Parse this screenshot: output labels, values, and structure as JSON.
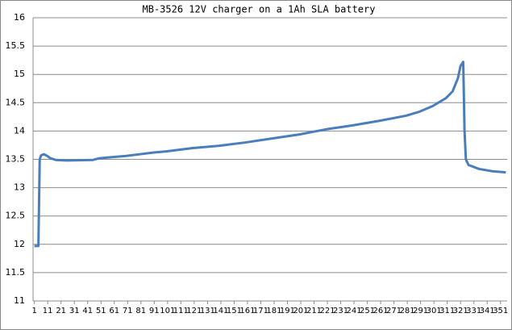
{
  "chart_data": {
    "type": "line",
    "title": "MB-3526 12V charger on a 1Ah SLA battery",
    "x": [
      1,
      4,
      5,
      6,
      8,
      10,
      13,
      17,
      25,
      45,
      50,
      70,
      80,
      90,
      100,
      120,
      140,
      160,
      180,
      200,
      220,
      240,
      260,
      280,
      290,
      300,
      310,
      315,
      319,
      321,
      323,
      324,
      325,
      327,
      335,
      345,
      355
    ],
    "values": [
      11.97,
      11.97,
      13.5,
      13.57,
      13.59,
      13.57,
      13.52,
      13.49,
      13.48,
      13.49,
      13.52,
      13.56,
      13.59,
      13.62,
      13.64,
      13.7,
      13.74,
      13.8,
      13.87,
      13.94,
      14.03,
      14.1,
      14.18,
      14.27,
      14.34,
      14.44,
      14.58,
      14.7,
      14.93,
      15.15,
      15.22,
      14.0,
      13.5,
      13.4,
      13.33,
      13.29,
      13.27
    ],
    "color": "#4a7ebb",
    "xlim": [
      0,
      356
    ],
    "xticks": [
      1,
      11,
      21,
      31,
      41,
      51,
      61,
      71,
      81,
      91,
      101,
      111,
      121,
      131,
      141,
      151,
      161,
      171,
      181,
      191,
      201,
      211,
      221,
      231,
      241,
      251,
      261,
      271,
      281,
      291,
      301,
      311,
      321,
      331,
      341,
      351
    ],
    "ylim": [
      11,
      16
    ],
    "yticks": [
      11,
      11.5,
      12,
      12.5,
      13,
      13.5,
      14,
      14.5,
      15,
      15.5,
      16
    ],
    "grid": true
  }
}
